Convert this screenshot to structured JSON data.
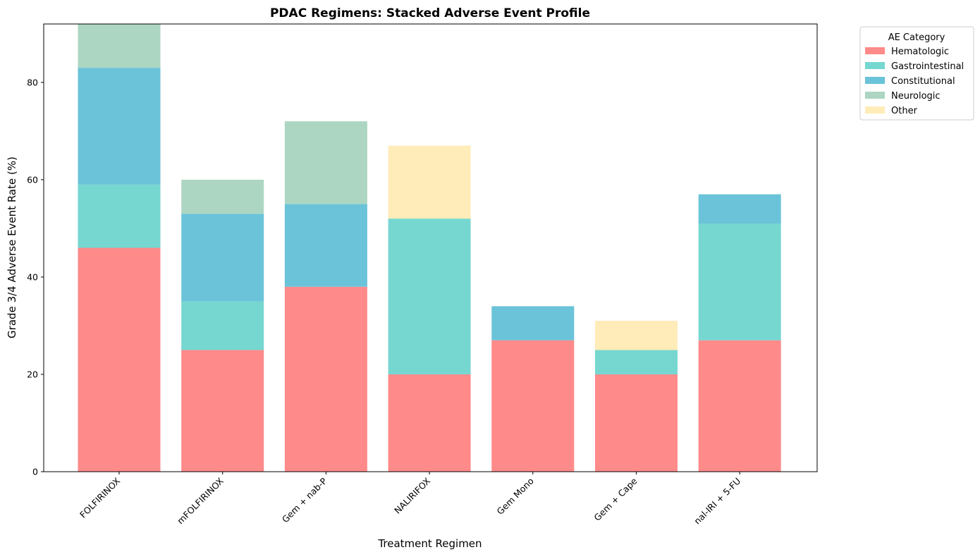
{
  "chart_data": {
    "type": "bar",
    "stacked": true,
    "title": "PDAC Regimens: Stacked Adverse Event Profile",
    "xlabel": "Treatment Regimen",
    "ylabel": "Grade 3/4 Adverse Event Rate (%)",
    "ylim": [
      0,
      92
    ],
    "yticks": [
      0,
      20,
      40,
      60,
      80
    ],
    "grid": false,
    "legend": {
      "title": "AE Category",
      "placement": "outside-top-right"
    },
    "categories": [
      "FOLFIRINOX",
      "mFOLFIRINOX",
      "Gem + nab-P",
      "NALIRIFOX",
      "Gem Mono",
      "Gem + Cape",
      "nal-IRI + 5-FU"
    ],
    "series": [
      {
        "name": "Hematologic",
        "color": "#ff8a8a",
        "values": [
          46,
          25,
          38,
          20,
          27,
          20,
          27
        ]
      },
      {
        "name": "Gastrointestinal",
        "color": "#76d7d1",
        "values": [
          13,
          10,
          0,
          32,
          0,
          5,
          24
        ]
      },
      {
        "name": "Constitutional",
        "color": "#6ac3d9",
        "values": [
          24,
          18,
          17,
          0,
          7,
          0,
          6
        ]
      },
      {
        "name": "Neurologic",
        "color": "#add6c2",
        "values": [
          9,
          7,
          17,
          0,
          0,
          0,
          0
        ]
      },
      {
        "name": "Other",
        "color": "#ffecb8",
        "values": [
          0,
          0,
          0,
          15,
          0,
          6,
          0
        ]
      }
    ]
  }
}
